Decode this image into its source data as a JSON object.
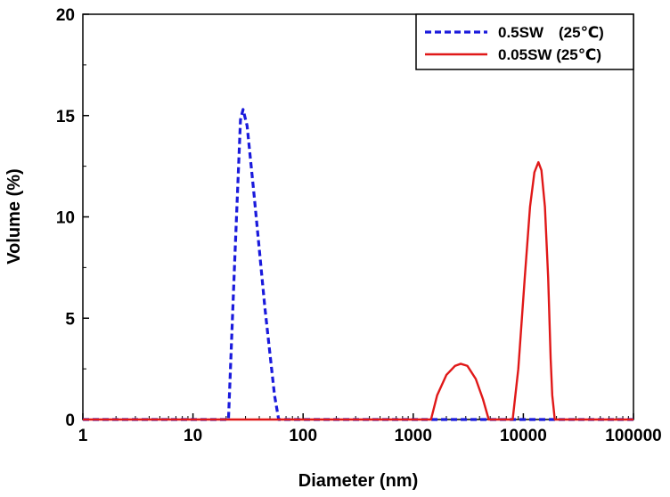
{
  "chart_data": {
    "type": "line",
    "title": "",
    "xlabel": "Diameter (nm)",
    "ylabel": "Volume (%)",
    "x_scale": "log",
    "xlim": [
      1,
      100000
    ],
    "ylim": [
      0,
      20
    ],
    "x_ticks": [
      1,
      10,
      100,
      1000,
      10000,
      100000
    ],
    "x_tick_labels": [
      "1",
      "10",
      "100",
      "1000",
      "10000",
      "100000"
    ],
    "y_ticks": [
      0,
      5,
      10,
      15,
      20
    ],
    "y_tick_labels": [
      "0",
      "5",
      "10",
      "15",
      "20"
    ],
    "grid": false,
    "legend_position": "top-right",
    "series": [
      {
        "name": "0.5SW　(25℃)",
        "color": "#1a1adc",
        "dash": "dashed",
        "points": [
          [
            1,
            0
          ],
          [
            21,
            0
          ],
          [
            24,
            8
          ],
          [
            27,
            14.8
          ],
          [
            28.5,
            15.3
          ],
          [
            31,
            14.5
          ],
          [
            36,
            11
          ],
          [
            45,
            5.5
          ],
          [
            55,
            1.2
          ],
          [
            60,
            0
          ],
          [
            100000,
            0
          ]
        ]
      },
      {
        "name": "0.05SW (25℃)",
        "color": "#e01818",
        "dash": "solid",
        "points": [
          [
            1,
            0
          ],
          [
            1450,
            0
          ],
          [
            1650,
            1.2
          ],
          [
            2000,
            2.2
          ],
          [
            2400,
            2.65
          ],
          [
            2700,
            2.75
          ],
          [
            3100,
            2.65
          ],
          [
            3700,
            2.0
          ],
          [
            4300,
            1.0
          ],
          [
            4850,
            0
          ],
          [
            8000,
            0
          ],
          [
            9000,
            2.5
          ],
          [
            10300,
            7
          ],
          [
            11500,
            10.5
          ],
          [
            12600,
            12.2
          ],
          [
            13700,
            12.7
          ],
          [
            14600,
            12.3
          ],
          [
            15700,
            10.5
          ],
          [
            16800,
            7
          ],
          [
            17700,
            3
          ],
          [
            18300,
            1.2
          ],
          [
            19300,
            0
          ],
          [
            100000,
            0
          ]
        ]
      }
    ]
  }
}
